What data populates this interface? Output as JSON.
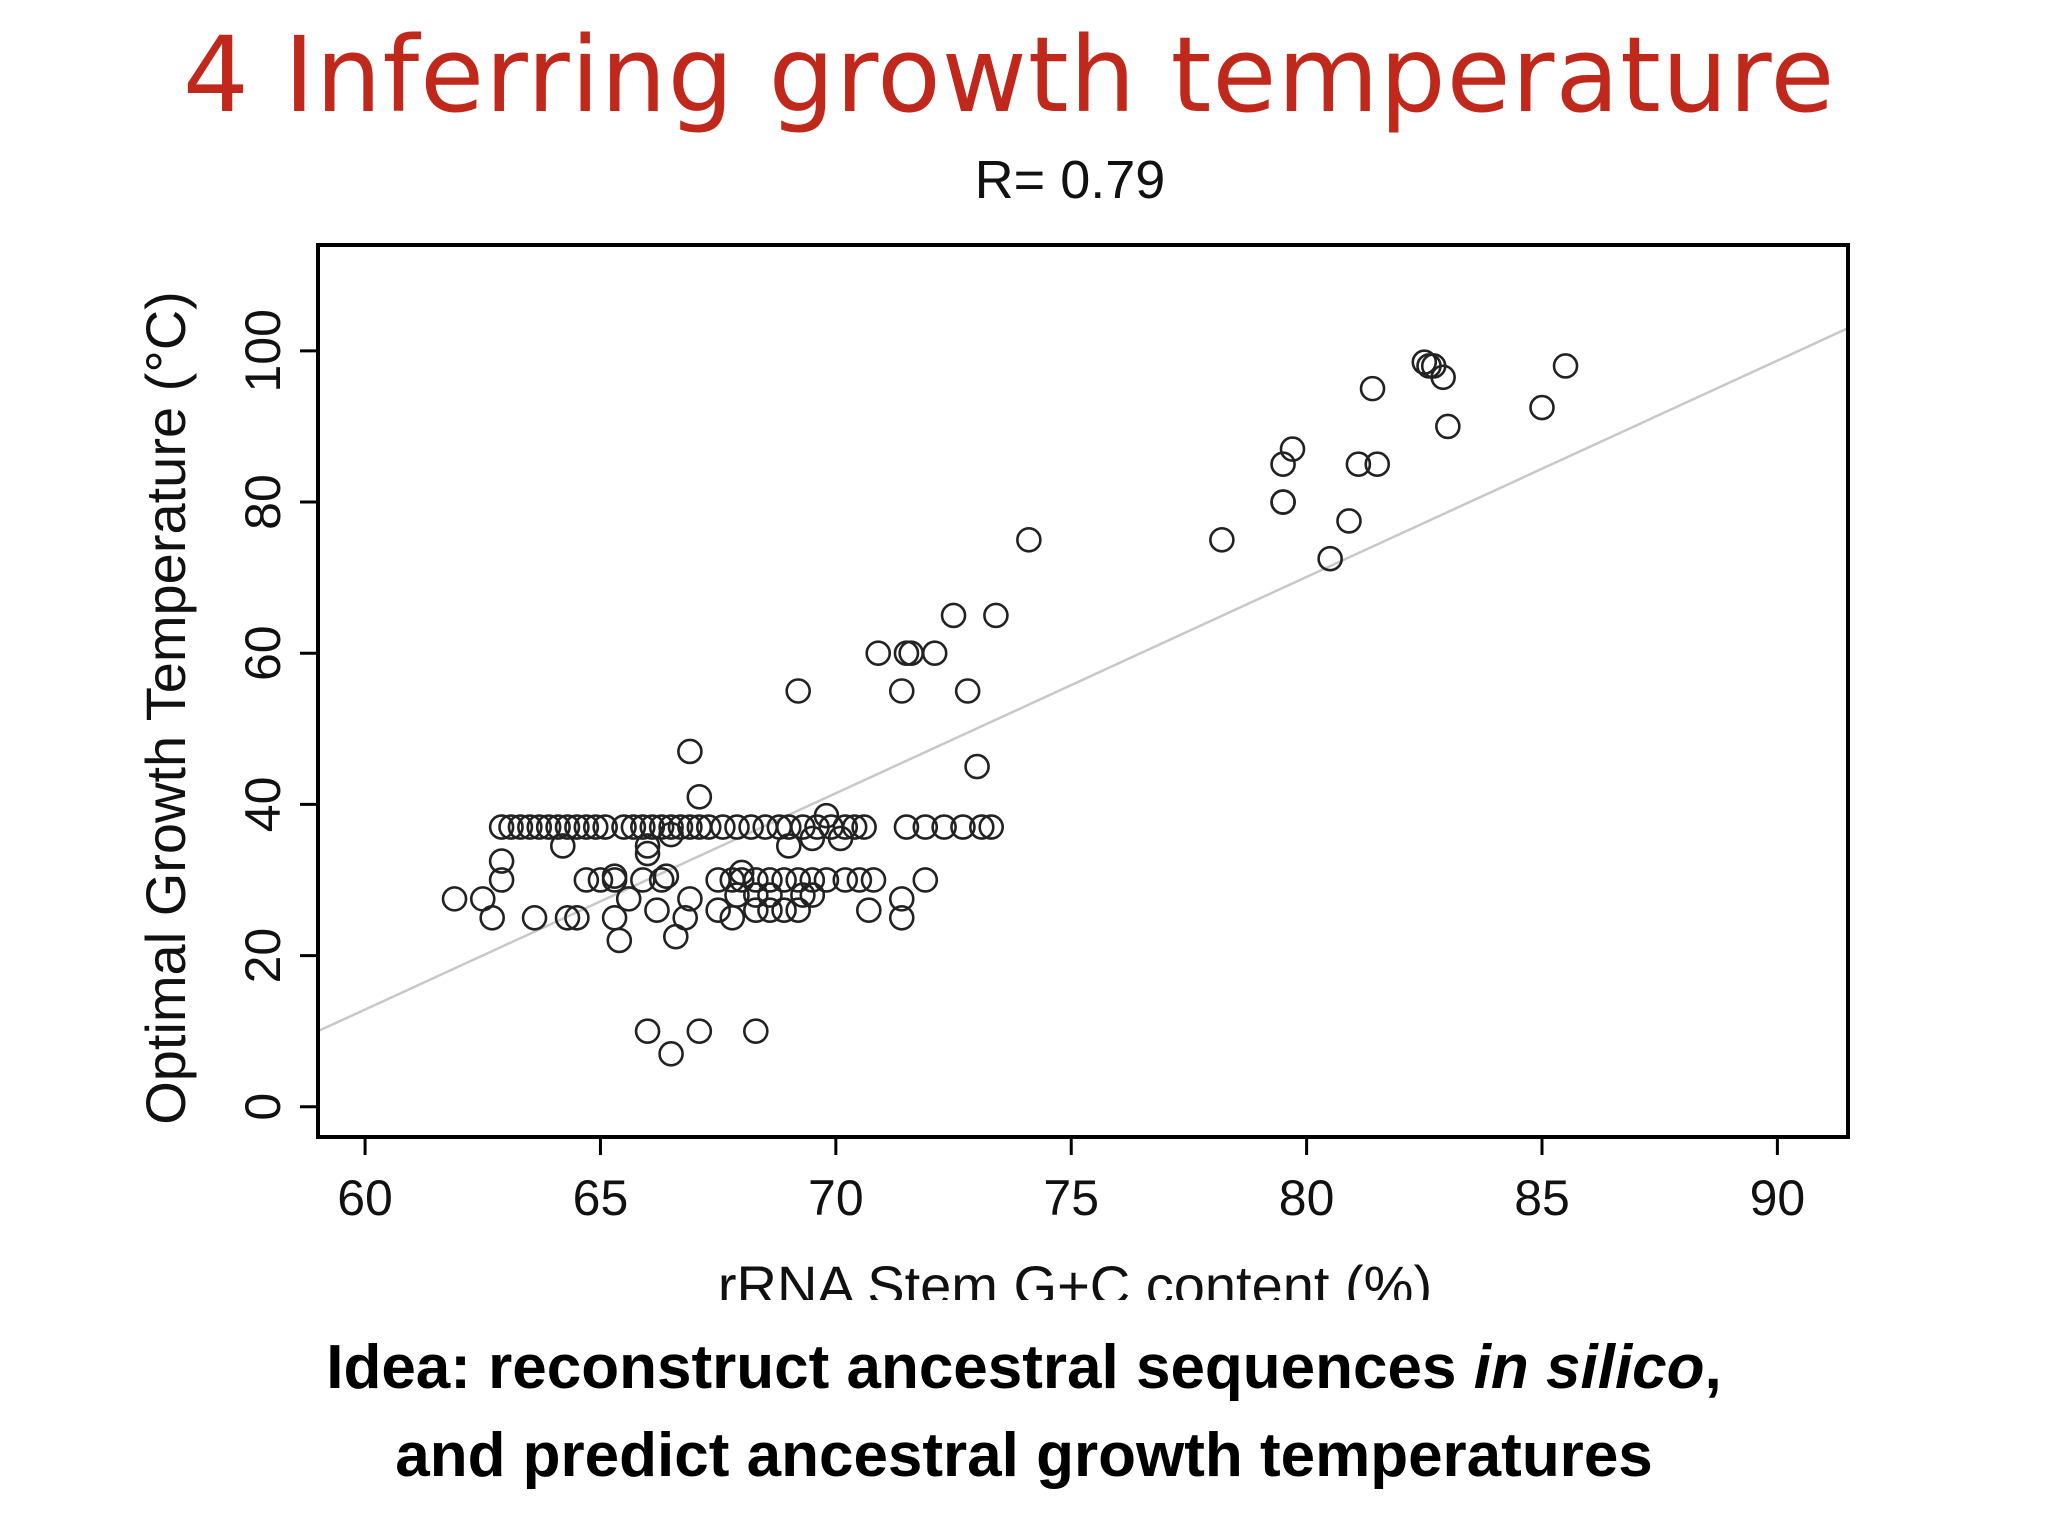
{
  "slide": {
    "title": "4 Inferring growth temperature",
    "caption": {
      "line1_prefix": "Idea: reconstruct ancestral sequences ",
      "line1_italic": "in silico",
      "line1_suffix": ",",
      "line2": "and predict ancestral growth temperatures"
    }
  },
  "chart_data": {
    "type": "scatter",
    "title": "R= 0.79",
    "xlabel": "rRNA Stem G+C content (%)",
    "ylabel": "Optimal Growth Temperature (°C)",
    "xlim": [
      59,
      91.5
    ],
    "ylim": [
      -4,
      114
    ],
    "xticks": [
      60,
      65,
      70,
      75,
      80,
      85,
      90
    ],
    "yticks": [
      0,
      20,
      40,
      60,
      80,
      100
    ],
    "grid": false,
    "legend": "none",
    "marker_color": "#222222",
    "fit_line_color": "#c8c8c8",
    "fit_line": {
      "x": [
        59,
        91.5
      ],
      "y": [
        10,
        103
      ]
    },
    "points": [
      [
        62.9,
        37
      ],
      [
        63.1,
        37
      ],
      [
        63.3,
        37
      ],
      [
        63.5,
        37
      ],
      [
        63.7,
        37
      ],
      [
        63.9,
        37
      ],
      [
        64.1,
        37
      ],
      [
        64.3,
        37
      ],
      [
        64.5,
        37
      ],
      [
        64.7,
        37
      ],
      [
        64.9,
        37
      ],
      [
        65.1,
        37
      ],
      [
        65.5,
        37
      ],
      [
        65.7,
        37
      ],
      [
        65.9,
        37
      ],
      [
        66.1,
        37
      ],
      [
        66.3,
        37
      ],
      [
        66.5,
        37
      ],
      [
        66.7,
        37
      ],
      [
        66.9,
        37
      ],
      [
        67.1,
        37
      ],
      [
        67.3,
        37
      ],
      [
        67.6,
        37
      ],
      [
        67.9,
        37
      ],
      [
        68.2,
        37
      ],
      [
        68.5,
        37
      ],
      [
        68.8,
        37
      ],
      [
        69.0,
        37
      ],
      [
        69.3,
        37
      ],
      [
        69.6,
        37
      ],
      [
        69.9,
        37
      ],
      [
        70.2,
        37
      ],
      [
        70.4,
        37
      ],
      [
        70.6,
        37
      ],
      [
        71.5,
        37
      ],
      [
        71.9,
        37
      ],
      [
        72.3,
        37
      ],
      [
        72.7,
        37
      ],
      [
        73.1,
        37
      ],
      [
        73.3,
        37
      ],
      [
        66.0,
        33.5
      ],
      [
        66.0,
        34.5
      ],
      [
        64.2,
        34.5
      ],
      [
        69.0,
        34.5
      ],
      [
        69.5,
        35.5
      ],
      [
        70.1,
        35.5
      ],
      [
        69.8,
        38.5
      ],
      [
        67.1,
        41
      ],
      [
        66.9,
        47
      ],
      [
        66.5,
        36
      ],
      [
        67.5,
        30
      ],
      [
        67.8,
        30
      ],
      [
        68.0,
        30
      ],
      [
        68.3,
        30
      ],
      [
        68.6,
        30
      ],
      [
        68.9,
        30
      ],
      [
        69.2,
        30
      ],
      [
        69.5,
        30
      ],
      [
        69.8,
        30
      ],
      [
        70.2,
        30
      ],
      [
        70.5,
        30
      ],
      [
        70.8,
        30
      ],
      [
        64.7,
        30
      ],
      [
        65.0,
        30
      ],
      [
        65.3,
        30
      ],
      [
        65.9,
        30
      ],
      [
        66.3,
        30
      ],
      [
        68.0,
        31
      ],
      [
        69.3,
        28
      ],
      [
        69.5,
        28
      ],
      [
        68.3,
        28
      ],
      [
        68.6,
        28
      ],
      [
        67.9,
        28
      ],
      [
        69.2,
        26
      ],
      [
        68.9,
        26
      ],
      [
        68.6,
        26
      ],
      [
        68.3,
        26
      ],
      [
        67.8,
        25
      ],
      [
        67.5,
        26
      ],
      [
        66.2,
        26
      ],
      [
        66.8,
        25
      ],
      [
        66.9,
        27.5
      ],
      [
        66.6,
        22.5
      ],
      [
        65.4,
        22
      ],
      [
        65.3,
        25
      ],
      [
        65.6,
        27.5
      ],
      [
        64.5,
        25
      ],
      [
        64.3,
        25
      ],
      [
        63.6,
        25
      ],
      [
        62.7,
        25
      ],
      [
        62.5,
        27.5
      ],
      [
        61.9,
        27.5
      ],
      [
        62.9,
        30
      ],
      [
        62.9,
        32.5
      ],
      [
        70.7,
        26
      ],
      [
        71.4,
        25
      ],
      [
        71.4,
        27.5
      ],
      [
        71.9,
        30
      ],
      [
        65.3,
        30.5
      ],
      [
        66.4,
        30.5
      ],
      [
        66.0,
        10
      ],
      [
        66.5,
        7
      ],
      [
        67.1,
        10
      ],
      [
        68.3,
        10
      ],
      [
        69.2,
        55
      ],
      [
        70.9,
        60
      ],
      [
        71.5,
        60
      ],
      [
        71.6,
        60
      ],
      [
        72.1,
        60
      ],
      [
        71.4,
        55
      ],
      [
        72.8,
        55
      ],
      [
        73.0,
        45
      ],
      [
        72.5,
        65
      ],
      [
        73.4,
        65
      ],
      [
        74.1,
        75
      ],
      [
        78.2,
        75
      ],
      [
        79.5,
        80
      ],
      [
        79.5,
        80
      ],
      [
        79.5,
        85
      ],
      [
        79.7,
        87
      ],
      [
        80.5,
        72.5
      ],
      [
        80.9,
        77.5
      ],
      [
        81.1,
        85
      ],
      [
        81.5,
        85
      ],
      [
        81.4,
        95
      ],
      [
        82.5,
        98.5
      ],
      [
        82.7,
        98
      ],
      [
        82.6,
        98
      ],
      [
        82.9,
        96.5
      ],
      [
        83.0,
        90
      ],
      [
        85.0,
        92.5
      ],
      [
        85.5,
        98
      ]
    ]
  }
}
